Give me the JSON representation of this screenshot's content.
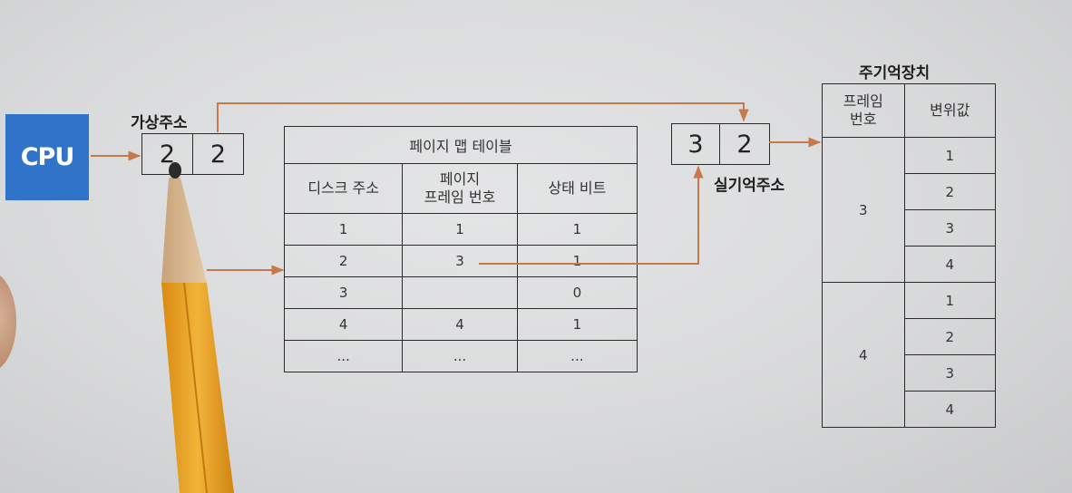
{
  "cpu": {
    "label": "CPU"
  },
  "virtual_address": {
    "label": "가상주소",
    "page": "2",
    "offset": "2"
  },
  "page_table": {
    "title": "페이지 맵 테이블",
    "headers": [
      "디스크 주소",
      "페이지\n프레임 번호",
      "상태 비트"
    ],
    "rows": [
      [
        "1",
        "1",
        "1"
      ],
      [
        "2",
        "3",
        "1"
      ],
      [
        "3",
        "",
        "0"
      ],
      [
        "4",
        "4",
        "1"
      ],
      [
        "...",
        "...",
        "..."
      ]
    ]
  },
  "real_address": {
    "label": "실기억주소",
    "frame": "3",
    "offset": "2"
  },
  "main_memory": {
    "title": "주기억장치",
    "headers": [
      "프레임\n번호",
      "변위값"
    ],
    "frames": [
      {
        "number": "3",
        "offsets": [
          "1",
          "2",
          "3",
          "4"
        ]
      },
      {
        "number": "4",
        "offsets": [
          "1",
          "2",
          "3",
          "4"
        ]
      }
    ]
  },
  "colors": {
    "arrow": "#c8794b",
    "cpu_fill": "#2f74c8",
    "line": "#2a2a2a"
  }
}
